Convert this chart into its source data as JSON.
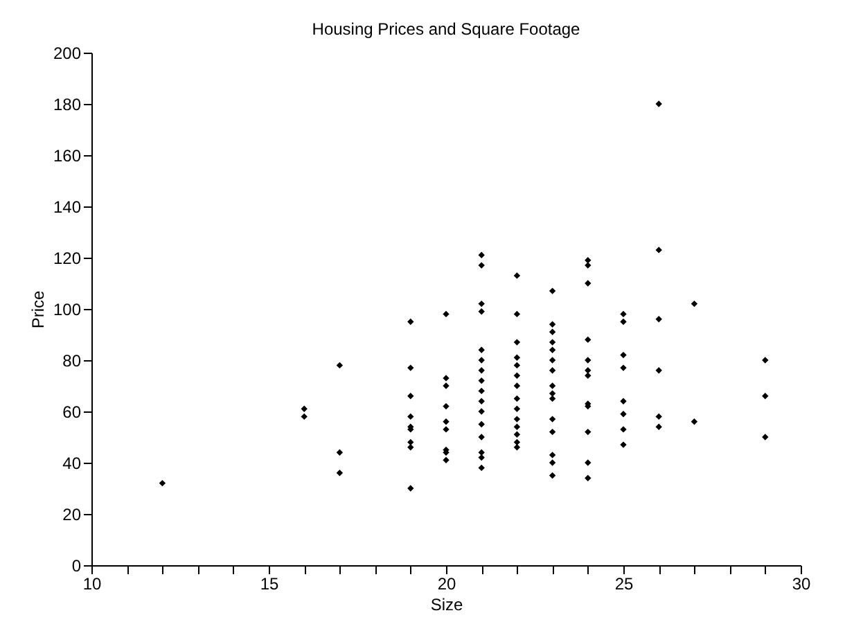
{
  "chart_data": {
    "type": "scatter",
    "title": "Housing Prices and Square Footage",
    "xlabel": "Size",
    "ylabel": "Price",
    "marker": "diamond",
    "grid": false,
    "legend": false,
    "xlim": [
      10,
      30
    ],
    "ylim": [
      0,
      200
    ],
    "xticks": [
      10,
      {
        "value": 11,
        "label": null
      },
      {
        "value": 12,
        "label": null
      },
      {
        "value": 13,
        "label": null
      },
      {
        "value": 14,
        "label": null
      },
      15,
      {
        "value": 16,
        "label": null
      },
      {
        "value": 17,
        "label": null
      },
      {
        "value": 18,
        "label": null
      },
      {
        "value": 19,
        "label": null
      },
      20,
      {
        "value": 21,
        "label": null
      },
      {
        "value": 22,
        "label": null
      },
      {
        "value": 23,
        "label": null
      },
      {
        "value": 24,
        "label": null
      },
      25,
      {
        "value": 26,
        "label": null
      },
      {
        "value": 27,
        "label": null
      },
      {
        "value": 28,
        "label": null
      },
      {
        "value": 29,
        "label": null
      },
      30
    ],
    "yticks": [
      0,
      20,
      40,
      60,
      80,
      100,
      120,
      140,
      160,
      180,
      200
    ],
    "series": [
      {
        "color": "#000000",
        "x": [
          12,
          16,
          16,
          17,
          17,
          17,
          19,
          19,
          19,
          19,
          19,
          19,
          19,
          19,
          19,
          20,
          20,
          20,
          20,
          20,
          20,
          20,
          20,
          20,
          21,
          21,
          21,
          21,
          21,
          21,
          21,
          21,
          21,
          21,
          21,
          21,
          21,
          21,
          21,
          21,
          22,
          22,
          22,
          22,
          22,
          22,
          22,
          22,
          22,
          22,
          22,
          22,
          22,
          22,
          23,
          23,
          23,
          23,
          23,
          23,
          23,
          23,
          23,
          23,
          23,
          23,
          23,
          23,
          23,
          24,
          24,
          24,
          24,
          24,
          24,
          24,
          24,
          24,
          24,
          24,
          24,
          25,
          25,
          25,
          25,
          25,
          25,
          25,
          25,
          26,
          26,
          26,
          26,
          26,
          26,
          27,
          27,
          29,
          29,
          29
        ],
        "values": [
          32,
          61,
          58,
          78,
          44,
          36,
          95,
          77,
          66,
          58,
          54,
          53,
          48,
          46,
          30,
          98,
          73,
          70,
          62,
          56,
          53,
          45,
          44,
          41,
          121,
          117,
          102,
          99,
          84,
          80,
          76,
          72,
          68,
          64,
          60,
          55,
          50,
          44,
          42,
          38,
          113,
          98,
          87,
          81,
          78,
          74,
          70,
          65,
          61,
          57,
          54,
          51,
          48,
          46,
          107,
          94,
          91,
          87,
          84,
          80,
          76,
          70,
          67,
          65,
          57,
          52,
          43,
          40,
          35,
          119,
          117,
          110,
          88,
          80,
          76,
          74,
          63,
          62,
          52,
          40,
          34,
          98,
          95,
          82,
          77,
          64,
          59,
          53,
          47,
          180,
          123,
          96,
          76,
          58,
          54,
          102,
          56,
          80,
          66,
          50
        ]
      }
    ]
  }
}
